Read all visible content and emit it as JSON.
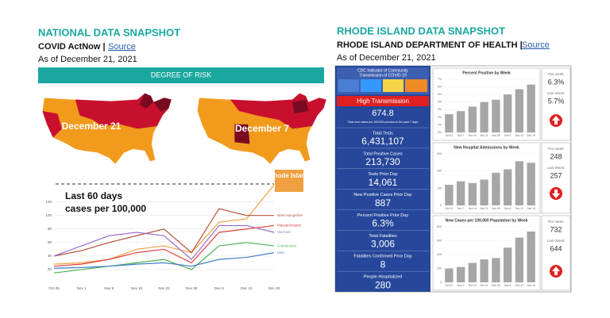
{
  "left": {
    "title": "NATIONAL DATA SNAPSHOT",
    "org": "COVID ActNow |",
    "link": "Source",
    "date": "As of December 21, 2021",
    "banner": "DEGREE OF RISK",
    "maps": [
      "December 21",
      "December 7"
    ]
  },
  "right": {
    "title": "RHODE ISLAND DATA SNAPSHOT",
    "org": "RHODE ISLAND DEPARTMENT OF HEALTH |",
    "link": "Source",
    "date": "As of December 21, 2021"
  },
  "cdc": {
    "title": [
      "CDC Indicator of Community",
      "Transmission of COVID-19"
    ],
    "level": "High Transmission",
    "value": "674.8",
    "note": "Total new cases per 100,000 persons in the past 7 days"
  },
  "stats": [
    {
      "label": "Total Tests",
      "value": "6,431,107"
    },
    {
      "label": "Total Positive Cases",
      "value": "213,730"
    },
    {
      "label": "Tests Prior Day",
      "value": "14,061"
    },
    {
      "label": "New Positive Cases Prior Day",
      "value": "887"
    },
    {
      "label": "Percent Positive Prior Day",
      "value": "6.3%"
    },
    {
      "label": "Total Fatalities",
      "value": "3,006"
    },
    {
      "label": "Fatalities Confirmed Prior Day",
      "value": "8"
    },
    {
      "label": "People Hospitalized",
      "value": "280"
    }
  ],
  "side": [
    {
      "this_label": "This week:",
      "this_value": "6.3%",
      "last_label": "Last Week:",
      "last_value": "5.7%"
    },
    {
      "this_label": "This week:",
      "this_value": "248",
      "last_label": "Last Week:",
      "last_value": "257"
    },
    {
      "this_label": "This week:",
      "this_value": "732",
      "last_label": "Last Week:",
      "last_value": "644"
    }
  ],
  "chart_data": [
    {
      "type": "line",
      "annotations": [
        "Last 60 days",
        "cases per 100,000"
      ],
      "categories": [
        "Oct 25",
        "Nov 1",
        "Nov 8",
        "Nov 15",
        "Nov 22",
        "Nov 29",
        "Dec 6",
        "Dec 13",
        "Dec 20"
      ],
      "ylim": [
        0,
        150
      ],
      "yticks": [
        20,
        40,
        60,
        80,
        100,
        120
      ],
      "grid": true,
      "series": [
        {
          "name": "Rhode Island",
          "color": "#f0a040",
          "values": [
            28,
            30,
            35,
            50,
            55,
            45,
            90,
            95,
            145
          ]
        },
        {
          "name": "New Hampshire",
          "color": "#b5523b",
          "values": [
            40,
            48,
            60,
            70,
            80,
            45,
            110,
            100,
            100
          ]
        },
        {
          "name": "Massachusetts",
          "color": "#e04040",
          "values": [
            25,
            28,
            35,
            45,
            50,
            30,
            75,
            80,
            85
          ]
        },
        {
          "name": "Vermont",
          "color": "#9a6fc9",
          "values": [
            40,
            55,
            70,
            75,
            70,
            35,
            85,
            85,
            75
          ]
        },
        {
          "name": "Connecticut",
          "color": "#4caf50",
          "values": [
            15,
            20,
            25,
            30,
            35,
            20,
            55,
            60,
            55
          ]
        },
        {
          "name": "USA",
          "color": "#3f7fc6",
          "values": [
            22,
            23,
            25,
            28,
            30,
            25,
            35,
            38,
            45
          ]
        }
      ]
    },
    {
      "type": "bar",
      "title": "Percent Positive by Week",
      "color": "#a6a6a6",
      "categories": [
        "Oct 31",
        "Nov 7",
        "Nov 14",
        "Nov 21",
        "Nov 28",
        "Dec 5",
        "Dec 12",
        "Dec 19"
      ],
      "values": [
        2.4,
        2.8,
        3.4,
        4.0,
        4.3,
        5.0,
        5.7,
        6.3
      ],
      "ylim": [
        0,
        7
      ],
      "yticks": [
        {
          "value": 0,
          "label": "0%"
        },
        {
          "value": 1,
          "label": "1%"
        },
        {
          "value": 2,
          "label": "2%"
        },
        {
          "value": 3,
          "label": "3%"
        },
        {
          "value": 4,
          "label": "4%"
        },
        {
          "value": 5,
          "label": "5%"
        },
        {
          "value": 6,
          "label": "6%"
        },
        {
          "value": 7,
          "label": "7%"
        }
      ]
    },
    {
      "type": "bar",
      "title": "New Hospital Admissions by Week",
      "color": "#a6a6a6",
      "categories": [
        "Oct 31",
        "Nov 7",
        "Nov 14",
        "Nov 21",
        "Nov 28",
        "Dec 5",
        "Dec 12",
        "Dec 19"
      ],
      "values": [
        120,
        140,
        130,
        150,
        190,
        210,
        257,
        248
      ],
      "ylim": [
        0,
        300
      ],
      "yticks": [
        0,
        100,
        200,
        300
      ]
    },
    {
      "type": "bar",
      "title": "New Cases per 100,000 Population by Week",
      "color": "#a6a6a6",
      "categories": [
        "Oct 31",
        "Nov 7",
        "Nov 14",
        "Nov 21",
        "Nov 28",
        "Dec 5",
        "Dec 12",
        "Dec 19"
      ],
      "values": [
        200,
        220,
        280,
        330,
        350,
        500,
        644,
        732
      ],
      "ylim": [
        0,
        800
      ],
      "yticks": [
        0,
        200,
        400,
        600,
        800
      ]
    }
  ]
}
